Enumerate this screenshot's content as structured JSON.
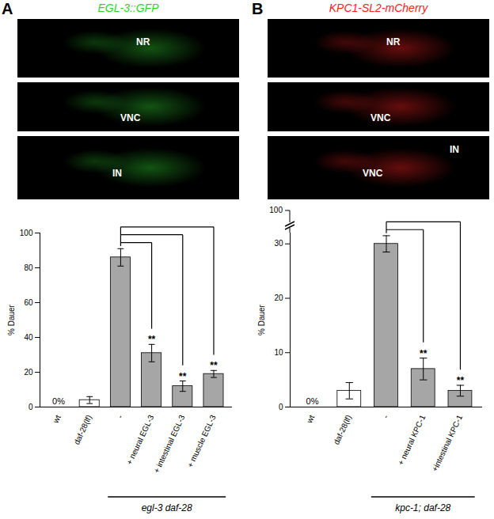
{
  "panels": [
    {
      "label": "A",
      "title": "EGL-3::GFP",
      "color": "#2fd12f",
      "images": [
        [
          "NR"
        ],
        [
          "VNC"
        ],
        [
          "IN"
        ]
      ]
    },
    {
      "label": "B",
      "title": "KPC1-SL2-mCherry",
      "color": "#ff2020",
      "images": [
        [
          "NR"
        ],
        [
          "VNC"
        ],
        [
          "VNC",
          "IN"
        ]
      ]
    }
  ],
  "chart_data": [
    {
      "type": "bar",
      "ylabel": "% Dauer",
      "categories": [
        "wt",
        "daf-28(lf)",
        "-",
        "+ neural EGL-3",
        "+ intestinal EGL-3",
        "+ muscle EGL-3"
      ],
      "values": [
        0,
        4,
        86,
        31,
        12,
        19
      ],
      "errors": [
        null,
        2,
        5,
        5,
        3,
        2
      ],
      "colors": [
        "#ffffff",
        "#ffffff",
        "#a6a6a6",
        "#a6a6a6",
        "#a6a6a6",
        "#a6a6a6"
      ],
      "value_labels": [
        "0%",
        null,
        null,
        null,
        null,
        null
      ],
      "significance": [
        null,
        null,
        null,
        "**",
        "**",
        "**"
      ],
      "significance_reference": "-",
      "groups": [
        {
          "label": "egl-3 daf-28",
          "categories": [
            "-",
            "+ neural EGL-3",
            "+ intestinal EGL-3",
            "+ muscle EGL-3"
          ]
        }
      ],
      "ylim": [
        0,
        100
      ],
      "yticks": [
        0,
        20,
        40,
        60,
        80,
        100
      ]
    },
    {
      "type": "bar",
      "ylabel": "% Dauer",
      "categories": [
        "wt",
        "daf-28(lf)",
        "-",
        "+ neural KPC-1",
        "+intestinal KPC-1"
      ],
      "values": [
        0,
        3,
        30,
        7,
        3
      ],
      "errors": [
        null,
        1.5,
        1.5,
        2,
        1
      ],
      "colors": [
        "#ffffff",
        "#ffffff",
        "#a6a6a6",
        "#a6a6a6",
        "#a6a6a6"
      ],
      "value_labels": [
        "0%",
        null,
        null,
        null,
        null
      ],
      "significance": [
        null,
        null,
        null,
        "**",
        "**"
      ],
      "significance_reference": "-",
      "groups": [
        {
          "label": "kpc-1; daf-28",
          "categories": [
            "-",
            "+ neural KPC-1",
            "+intestinal KPC-1"
          ]
        }
      ],
      "ylim": [
        0,
        32
      ],
      "yticks": [
        0,
        10,
        20,
        30
      ],
      "axis_break_tick": 100
    }
  ]
}
